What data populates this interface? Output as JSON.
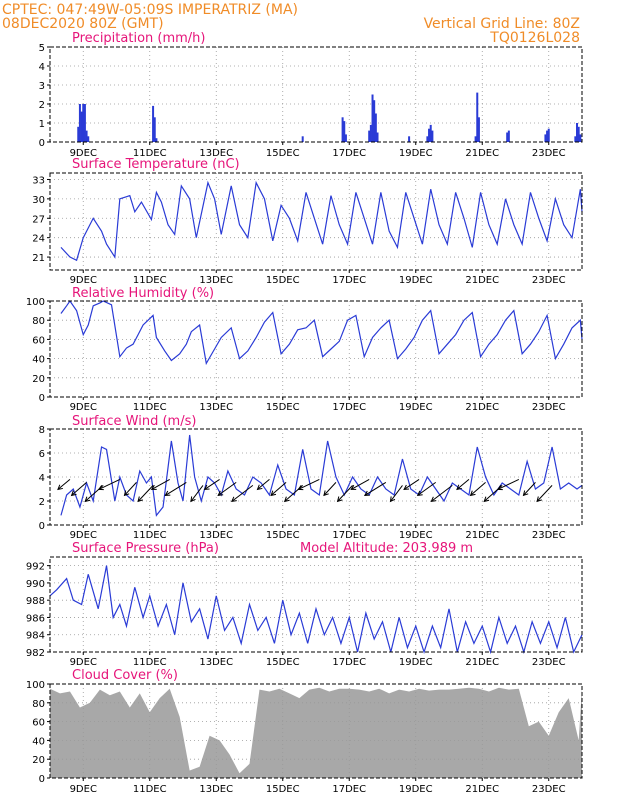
{
  "header": {
    "line1_left": "CPTEC:   047:49W-05:09S   IMPERATRIZ (MA)",
    "line2_left": "08DEC2020 80Z (GMT)",
    "line1_right": "Vertical Grid Line: 80Z",
    "line2_right": "TQ0126L028"
  },
  "colors": {
    "header": "#f08c28",
    "title": "#e6157a",
    "line": "#2a3bd6",
    "cloud": "#a8a8a8"
  },
  "chart_data": [
    {
      "type": "bar",
      "title": "Precipitation (mm/h)",
      "x_tick_labels": [
        "9DEC",
        "11DEC",
        "13DEC",
        "15DEC",
        "17DEC",
        "19DEC",
        "21DEC",
        "23DEC"
      ],
      "ylim": [
        0,
        5
      ],
      "y_ticks": [
        0,
        1,
        2,
        3,
        4,
        5
      ],
      "x_unit": "days since 08DEC2020 00Z",
      "x": [
        0.85,
        0.9,
        0.95,
        1.0,
        1.05,
        1.1,
        1.15,
        3.1,
        3.15,
        3.2,
        7.6,
        8.8,
        8.85,
        8.9,
        9.6,
        9.65,
        9.7,
        9.75,
        9.8,
        9.85,
        10.8,
        11.35,
        11.4,
        11.45,
        11.5,
        12.8,
        12.85,
        12.9,
        13.75,
        13.8,
        14.9,
        14.95,
        15.0,
        15.8,
        15.85,
        15.9,
        15.95
      ],
      "values": [
        0.8,
        2.0,
        1.6,
        2.0,
        2.0,
        0.6,
        0.3,
        1.9,
        1.3,
        0.2,
        0.3,
        1.3,
        1.1,
        0.4,
        0.6,
        0.9,
        2.5,
        2.2,
        1.5,
        0.5,
        0.3,
        0.3,
        0.7,
        0.9,
        0.6,
        0.3,
        2.6,
        1.3,
        0.5,
        0.6,
        0.4,
        0.6,
        0.7,
        0.3,
        1.0,
        0.8,
        0.4
      ]
    },
    {
      "type": "line",
      "title": "Surface Temperature (nC)",
      "x_tick_labels": [
        "9DEC",
        "11DEC",
        "13DEC",
        "15DEC",
        "17DEC",
        "19DEC",
        "21DEC",
        "23DEC"
      ],
      "ylim": [
        19,
        34
      ],
      "y_ticks": [
        21,
        24,
        27,
        30,
        33
      ],
      "x": [
        0.33,
        0.6,
        0.8,
        1.0,
        1.3,
        1.55,
        1.7,
        1.95,
        2.1,
        2.4,
        2.55,
        2.75,
        3.05,
        3.2,
        3.35,
        3.55,
        3.75,
        3.95,
        4.2,
        4.4,
        4.75,
        4.95,
        5.15,
        5.45,
        5.7,
        5.95,
        6.2,
        6.45,
        6.7,
        6.95,
        7.2,
        7.45,
        7.7,
        7.95,
        8.2,
        8.45,
        8.7,
        8.95,
        9.2,
        9.45,
        9.7,
        9.95,
        10.2,
        10.45,
        10.7,
        10.95,
        11.2,
        11.45,
        11.7,
        11.95,
        12.2,
        12.45,
        12.7,
        12.95,
        13.2,
        13.45,
        13.7,
        13.95,
        14.2,
        14.45,
        14.7,
        14.95,
        15.2,
        15.45,
        15.7,
        15.95,
        16.0
      ],
      "values": [
        22.5,
        21,
        20.5,
        24,
        27,
        25,
        23,
        21,
        30,
        30.5,
        28,
        29.5,
        26.8,
        31,
        29.5,
        26,
        24.5,
        32,
        30,
        24,
        32.5,
        30,
        24.5,
        32,
        26,
        24,
        32.5,
        30,
        23.5,
        29,
        27,
        23.5,
        31,
        27,
        23,
        30.5,
        26,
        23,
        31,
        27,
        23,
        31,
        25,
        22.5,
        31,
        27,
        23,
        31.5,
        26,
        23,
        31,
        27,
        22.5,
        31,
        26,
        23,
        30,
        26,
        23,
        31,
        27,
        23.5,
        30,
        26,
        24,
        31.5,
        28
      ]
    },
    {
      "type": "line",
      "title": "Relative Humidity (%)",
      "x_tick_labels": [
        "9DEC",
        "11DEC",
        "13DEC",
        "15DEC",
        "17DEC",
        "19DEC",
        "21DEC",
        "23DEC"
      ],
      "ylim": [
        0,
        100
      ],
      "y_ticks": [
        0,
        20,
        40,
        60,
        80,
        100
      ],
      "x": [
        0.33,
        0.5,
        0.6,
        0.8,
        1.0,
        1.15,
        1.3,
        1.5,
        1.6,
        1.85,
        2.1,
        2.3,
        2.5,
        2.65,
        2.8,
        3.1,
        3.2,
        3.45,
        3.65,
        3.9,
        4.1,
        4.25,
        4.5,
        4.7,
        4.95,
        5.15,
        5.45,
        5.7,
        5.95,
        6.2,
        6.45,
        6.7,
        6.95,
        7.2,
        7.45,
        7.7,
        7.95,
        8.2,
        8.45,
        8.7,
        8.95,
        9.2,
        9.45,
        9.7,
        9.95,
        10.2,
        10.45,
        10.7,
        10.95,
        11.2,
        11.45,
        11.7,
        11.95,
        12.2,
        12.45,
        12.7,
        12.95,
        13.2,
        13.45,
        13.7,
        13.95,
        14.2,
        14.45,
        14.7,
        14.95,
        15.2,
        15.45,
        15.7,
        15.95,
        16.0
      ],
      "values": [
        87,
        95,
        100,
        90,
        65,
        75,
        95,
        98,
        100,
        96,
        42,
        51,
        55,
        65,
        75,
        85,
        62,
        48,
        38,
        45,
        55,
        68,
        75,
        35,
        50,
        62,
        72,
        40,
        48,
        62,
        78,
        88,
        45,
        55,
        70,
        72,
        80,
        42,
        50,
        58,
        80,
        85,
        42,
        62,
        72,
        80,
        40,
        50,
        62,
        80,
        90,
        45,
        55,
        65,
        80,
        88,
        42,
        55,
        65,
        80,
        90,
        45,
        55,
        68,
        85,
        40,
        55,
        72,
        80,
        60
      ]
    },
    {
      "type": "line",
      "title": "Surface Wind (m/s)",
      "x_tick_labels": [
        "9DEC",
        "11DEC",
        "13DEC",
        "15DEC",
        "17DEC",
        "19DEC",
        "21DEC",
        "23DEC"
      ],
      "ylim": [
        0,
        8
      ],
      "y_ticks": [
        0,
        2,
        4,
        6,
        8
      ],
      "x": [
        0.33,
        0.5,
        0.7,
        0.9,
        1.1,
        1.3,
        1.55,
        1.7,
        1.95,
        2.1,
        2.3,
        2.5,
        2.7,
        2.9,
        3.05,
        3.2,
        3.4,
        3.65,
        3.85,
        4.0,
        4.2,
        4.35,
        4.55,
        4.75,
        4.95,
        5.15,
        5.35,
        5.6,
        5.85,
        6.1,
        6.35,
        6.6,
        6.85,
        7.1,
        7.35,
        7.6,
        7.85,
        8.1,
        8.35,
        8.6,
        8.85,
        9.1,
        9.35,
        9.6,
        9.85,
        10.1,
        10.35,
        10.6,
        10.85,
        11.1,
        11.35,
        11.6,
        11.85,
        12.1,
        12.35,
        12.6,
        12.85,
        13.1,
        13.35,
        13.6,
        13.85,
        14.1,
        14.35,
        14.6,
        14.85,
        15.1,
        15.35,
        15.6,
        15.85,
        16.0
      ],
      "values": [
        0.8,
        2.5,
        3.0,
        1.5,
        3.5,
        2.0,
        6.5,
        6.3,
        2.0,
        4.0,
        2.5,
        2.0,
        4.5,
        3.5,
        4.0,
        0.8,
        1.5,
        7.0,
        3.5,
        2.0,
        7.5,
        4.0,
        2.0,
        4.0,
        3.5,
        2.5,
        4.5,
        3.0,
        2.5,
        4.0,
        3.5,
        2.5,
        5.0,
        3.0,
        2.5,
        6.3,
        3.0,
        2.5,
        7.0,
        4.0,
        2.5,
        4.0,
        3.0,
        2.5,
        4.0,
        3.0,
        2.5,
        5.5,
        3.0,
        2.5,
        4.0,
        3.0,
        2.0,
        3.5,
        3.0,
        2.5,
        6.5,
        4.0,
        2.5,
        3.5,
        3.0,
        2.5,
        5.3,
        3.0,
        3.5,
        6.5,
        3.0,
        3.5,
        3.0,
        3.3
      ]
    },
    {
      "type": "line",
      "title": "Surface Pressure (hPa)",
      "annotation": "Model Altitude: 203.989 m",
      "x_tick_labels": [
        "9DEC",
        "11DEC",
        "13DEC",
        "15DEC",
        "17DEC",
        "19DEC",
        "21DEC",
        "23DEC"
      ],
      "ylim": [
        982,
        993
      ],
      "y_ticks": [
        982,
        984,
        986,
        988,
        990,
        992
      ],
      "x": [
        0.0,
        0.2,
        0.5,
        0.7,
        0.95,
        1.15,
        1.3,
        1.45,
        1.7,
        1.9,
        2.1,
        2.3,
        2.55,
        2.8,
        3.0,
        3.25,
        3.5,
        3.75,
        4.0,
        4.25,
        4.5,
        4.75,
        5.0,
        5.25,
        5.5,
        5.75,
        6.0,
        6.25,
        6.5,
        6.75,
        7.0,
        7.25,
        7.5,
        7.75,
        8.0,
        8.25,
        8.5,
        8.75,
        9.0,
        9.25,
        9.5,
        9.75,
        10.0,
        10.25,
        10.5,
        10.75,
        11.0,
        11.25,
        11.5,
        11.75,
        12.0,
        12.25,
        12.5,
        12.75,
        13.0,
        13.25,
        13.5,
        13.75,
        14.0,
        14.25,
        14.5,
        14.75,
        15.0,
        15.25,
        15.5,
        15.75,
        16.0
      ],
      "values": [
        988.5,
        989.2,
        990.5,
        988.0,
        987.5,
        991.0,
        989.0,
        987.0,
        992.0,
        986.0,
        987.5,
        985.0,
        989.5,
        986.0,
        988.5,
        985.0,
        987.5,
        984.0,
        990.0,
        985.5,
        987.0,
        983.5,
        988.5,
        984.5,
        986.0,
        983.0,
        987.5,
        984.5,
        986.0,
        983.0,
        988.0,
        984.0,
        986.5,
        983.0,
        987.0,
        984.0,
        986.0,
        983.0,
        986.0,
        982.0,
        986.5,
        983.5,
        985.5,
        982.0,
        986.0,
        982.5,
        985.0,
        982.0,
        985.0,
        982.5,
        987.0,
        982.0,
        985.5,
        983.0,
        985.0,
        982.0,
        986.0,
        983.0,
        985.0,
        982.0,
        985.5,
        983.0,
        985.5,
        982.5,
        986.0,
        982.0,
        984.0
      ]
    },
    {
      "type": "area",
      "title": "Cloud Cover (%)",
      "x_tick_labels": [
        "9DEC",
        "11DEC",
        "13DEC",
        "15DEC",
        "17DEC",
        "19DEC",
        "21DEC",
        "23DEC"
      ],
      "ylim": [
        0,
        100
      ],
      "y_ticks": [
        0,
        20,
        40,
        60,
        80,
        100
      ],
      "x": [
        0.0,
        0.3,
        0.6,
        0.9,
        1.2,
        1.5,
        1.8,
        2.1,
        2.4,
        2.7,
        3.0,
        3.3,
        3.6,
        3.9,
        4.2,
        4.5,
        4.8,
        5.1,
        5.4,
        5.7,
        6.0,
        6.3,
        6.6,
        6.9,
        7.2,
        7.5,
        7.8,
        8.1,
        8.4,
        8.7,
        9.0,
        9.3,
        9.6,
        9.9,
        10.2,
        10.5,
        10.8,
        11.1,
        11.4,
        11.7,
        12.0,
        12.3,
        12.6,
        12.9,
        13.2,
        13.5,
        13.8,
        14.1,
        14.4,
        14.7,
        15.0,
        15.3,
        15.6,
        15.9,
        16.0
      ],
      "values": [
        95,
        90,
        92,
        75,
        80,
        94,
        88,
        92,
        75,
        90,
        70,
        85,
        95,
        65,
        8,
        12,
        45,
        40,
        25,
        5,
        15,
        94,
        92,
        95,
        90,
        85,
        94,
        96,
        92,
        95,
        95,
        94,
        92,
        95,
        90,
        94,
        92,
        95,
        93,
        94,
        94,
        95,
        96,
        95,
        92,
        96,
        94,
        95,
        55,
        60,
        45,
        70,
        85,
        40,
        96
      ]
    }
  ]
}
